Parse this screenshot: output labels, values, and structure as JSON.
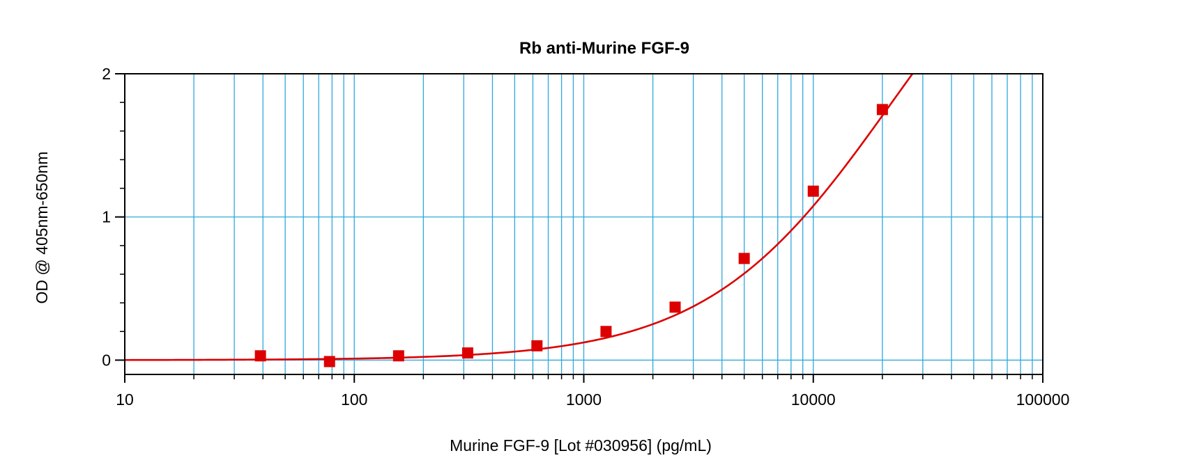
{
  "chart_data": {
    "type": "line",
    "title": "Rb anti-Murine FGF-9",
    "xlabel": "Murine FGF-9 [Lot #030956] (pg/mL)",
    "ylabel": "OD @ 405nm-650nm",
    "x_scale": "log",
    "xlim": [
      10,
      100000
    ],
    "ylim": [
      -0.1,
      2.0
    ],
    "x_ticks": [
      10,
      100,
      1000,
      10000,
      100000
    ],
    "x_tick_labels": [
      "10",
      "100",
      "1000",
      "10000",
      "100000"
    ],
    "y_ticks": [
      0,
      1,
      2
    ],
    "y_tick_labels": [
      "0",
      "1",
      "2"
    ],
    "grid": true,
    "legend": "none",
    "series": [
      {
        "points": [
          {
            "x": 39,
            "y": 0.03
          },
          {
            "x": 78,
            "y": -0.01
          },
          {
            "x": 156,
            "y": 0.03
          },
          {
            "x": 312,
            "y": 0.05
          },
          {
            "x": 625,
            "y": 0.1
          },
          {
            "x": 1250,
            "y": 0.2
          },
          {
            "x": 2500,
            "y": 0.37
          },
          {
            "x": 5000,
            "y": 0.71
          },
          {
            "x": 10000,
            "y": 1.18
          },
          {
            "x": 20000,
            "y": 1.75
          }
        ]
      }
    ],
    "colors": {
      "series": "#dd0000",
      "grid": "#2ea7de",
      "axis": "#000000"
    }
  }
}
